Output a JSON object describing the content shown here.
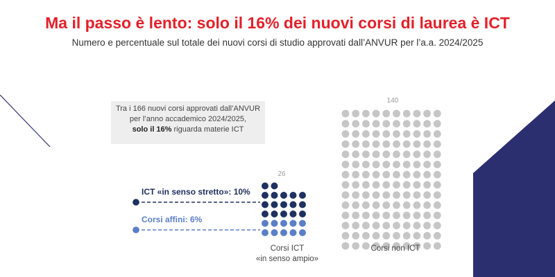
{
  "header": {
    "title": "Ma il passo è lento: solo il 16% dei nuovi corsi di laurea è ICT",
    "subtitle": "Numero e percentuale sul totale dei nuovi corsi di studio approvati dall’ANVUR per l’a.a. 2024/2025"
  },
  "callout": {
    "line1": "Tra i 166 nuovi corsi approvati dall’ANVUR",
    "line2": "per l’anno accademico 2024/2025,",
    "line3_bold": "solo il 16%",
    "line3_rest": " riguarda materie ICT"
  },
  "legend": {
    "ict_strict": "ICT «in senso stretto»: 10%",
    "affini": "Corsi affini: 6%"
  },
  "colors": {
    "ict_strict": "#1e3160",
    "affini": "#5b7fc7",
    "non_ict": "#c6c6c6",
    "title": "#e3202a",
    "deco_navy": "#2c2f6f"
  },
  "chart_data": {
    "type": "waffle",
    "title": "Ma il passo è lento: solo il 16% dei nuovi corsi di laurea è ICT",
    "subtitle": "Numero e percentuale sul totale dei nuovi corsi di studio approvati dall’ANVUR per l’a.a. 2024/2025",
    "total": 166,
    "groups": [
      {
        "label_line1": "Corsi ICT",
        "label_line2": "«in senso ampio»",
        "count_label": "26",
        "segments": [
          {
            "name": "ICT «in senso stretto»",
            "percent": 10
          },
          {
            "name": "Corsi affini",
            "percent": 6
          }
        ]
      },
      {
        "label_line1": "Corsi non ICT",
        "count_label": "140",
        "segments": [
          {
            "name": "Corsi non ICT",
            "count": 140
          }
        ]
      }
    ]
  }
}
